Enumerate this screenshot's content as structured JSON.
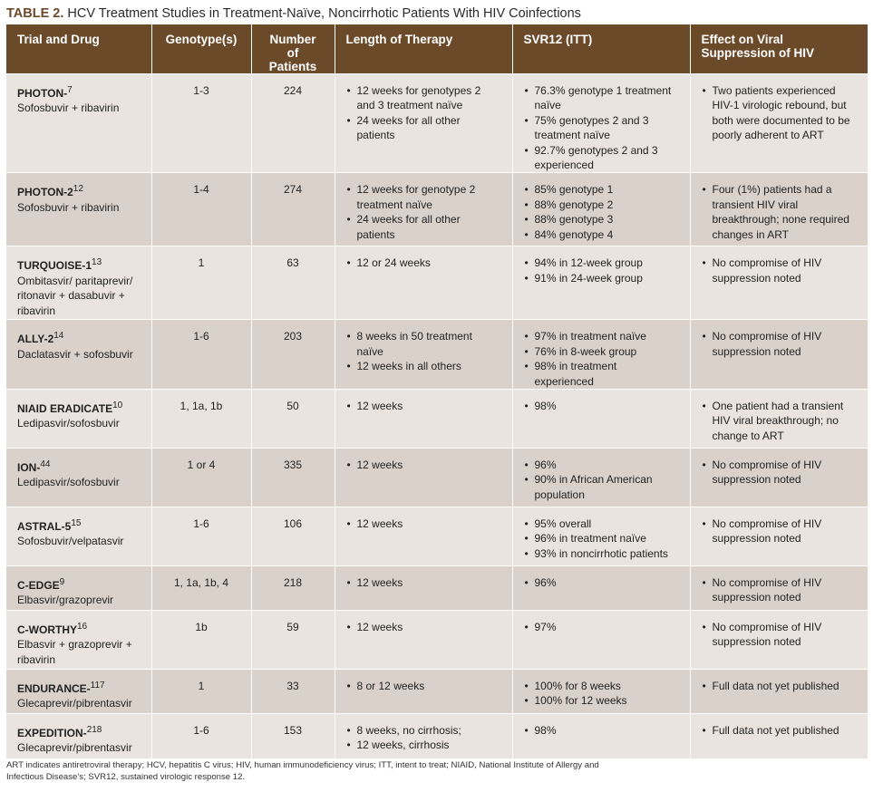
{
  "caption": {
    "label": "TABLE 2.",
    "title": "HCV Treatment Studies in Treatment-Naïve, Noncirrhotic Patients With HIV Coinfections"
  },
  "columns": [
    "Trial and Drug",
    "Genotype(s)",
    "Number of Patients",
    "Length of Therapy",
    "SVR12 (ITT)",
    "Effect on Viral Suppression of HIV"
  ],
  "rows": [
    {
      "trial": "PHOTON-",
      "ref": "7",
      "drug": "Sofosbuvir + ribavirin",
      "genotypes": "1-3",
      "patients": "224",
      "length": [
        "12 weeks for genotypes 2 and 3 treatment naïve",
        "24 weeks for all other patients"
      ],
      "svr": [
        "76.3% genotype 1 treatment naïve",
        "75% genotypes 2 and 3 treatment naïve",
        "92.7% genotypes 2 and 3 experienced"
      ],
      "effect": [
        "Two patients experienced HIV-1 virologic rebound, but both were documented to be poorly adherent to ART"
      ]
    },
    {
      "trial": "PHOTON-2",
      "ref": "12",
      "drug": "Sofosbuvir + ribavirin",
      "genotypes": "1-4",
      "patients": "274",
      "length": [
        "12 weeks for genotype 2 treatment naïve",
        "24 weeks for all other patients"
      ],
      "svr": [
        "85% genotype 1",
        "88% genotype 2",
        "88% genotype 3",
        "84% genotype 4"
      ],
      "effect": [
        "Four (1%) patients had a transient HIV viral breakthrough; none required changes in ART"
      ]
    },
    {
      "trial": "TURQUOISE-1",
      "ref": "13",
      "drug": "Ombitasvir/ paritaprevir/ ritonavir + dasabuvir + ribavirin",
      "genotypes": "1",
      "patients": "63",
      "length": [
        "12 or 24 weeks"
      ],
      "svr": [
        "94% in 12-week group",
        "91% in 24-week group"
      ],
      "effect": [
        "No compromise of HIV suppression noted"
      ]
    },
    {
      "trial": "ALLY-2",
      "ref": "14",
      "drug": "Daclatasvir + sofosbuvir",
      "genotypes": "1-6",
      "patients": "203",
      "length": [
        "8 weeks in 50 treatment naïve",
        "12 weeks in all others"
      ],
      "svr": [
        "97% in treatment naïve",
        "76% in 8-week group",
        "98% in treatment experienced"
      ],
      "effect": [
        "No compromise of HIV suppression noted"
      ]
    },
    {
      "trial": "NIAID ERADICATE",
      "ref": "10",
      "drug": "Ledipasvir/sofosbuvir",
      "genotypes": "1, 1a, 1b",
      "patients": "50",
      "length": [
        "12 weeks"
      ],
      "svr": [
        "98%"
      ],
      "effect": [
        "One patient had a transient HIV viral breakthrough; no change to ART"
      ]
    },
    {
      "trial": "ION-",
      "ref": "44",
      "drug": "Ledipasvir/sofosbuvir",
      "genotypes": "1 or 4",
      "patients": "335",
      "length": [
        "12 weeks"
      ],
      "svr": [
        "96%",
        "90% in African American population"
      ],
      "effect": [
        "No compromise of HIV suppression noted"
      ]
    },
    {
      "trial": "ASTRAL-5",
      "ref": "15",
      "drug": "Sofosbuvir/velpatasvir",
      "genotypes": "1-6",
      "patients": "106",
      "length": [
        "12 weeks"
      ],
      "svr": [
        "95% overall",
        "96% in treatment naïve",
        "93% in noncirrhotic patients"
      ],
      "effect": [
        "No compromise of HIV suppression noted"
      ]
    },
    {
      "trial": "C-EDGE",
      "ref": "9",
      "drug": "Elbasvir/grazoprevir",
      "genotypes": "1, 1a, 1b, 4",
      "patients": "218",
      "length": [
        "12 weeks"
      ],
      "svr": [
        "96%"
      ],
      "effect": [
        "No compromise of HIV suppression noted"
      ]
    },
    {
      "trial": "C-WORTHY",
      "ref": "16",
      "drug": "Elbasvir + grazoprevir + ribavirin",
      "genotypes": "1b",
      "patients": "59",
      "length": [
        "12 weeks"
      ],
      "svr": [
        "97%"
      ],
      "effect": [
        "No compromise of HIV suppression noted"
      ]
    },
    {
      "trial": "ENDURANCE-",
      "ref": "117",
      "drug": "Glecaprevir/pibrentasvir",
      "genotypes": "1",
      "patients": "33",
      "length": [
        "8 or 12 weeks"
      ],
      "svr": [
        "100% for 8 weeks",
        "100% for 12 weeks"
      ],
      "effect": [
        "Full data not yet published"
      ]
    },
    {
      "trial": "EXPEDITION-",
      "ref": "218",
      "drug": "Glecaprevir/pibrentasvir",
      "genotypes": "1-6",
      "patients": "153",
      "length": [
        "8 weeks, no cirrhosis;",
        "12 weeks, cirrhosis"
      ],
      "svr": [
        "98%"
      ],
      "effect": [
        "Full data not yet published"
      ]
    }
  ],
  "footnote": "ART indicates antiretroviral therapy; HCV, hepatitis C virus; HIV, human immunodeficiency virus; ITT, intent to treat; NIAID, National Institute of Allergy and Infectious Disease's; SVR12, sustained virologic response 12."
}
